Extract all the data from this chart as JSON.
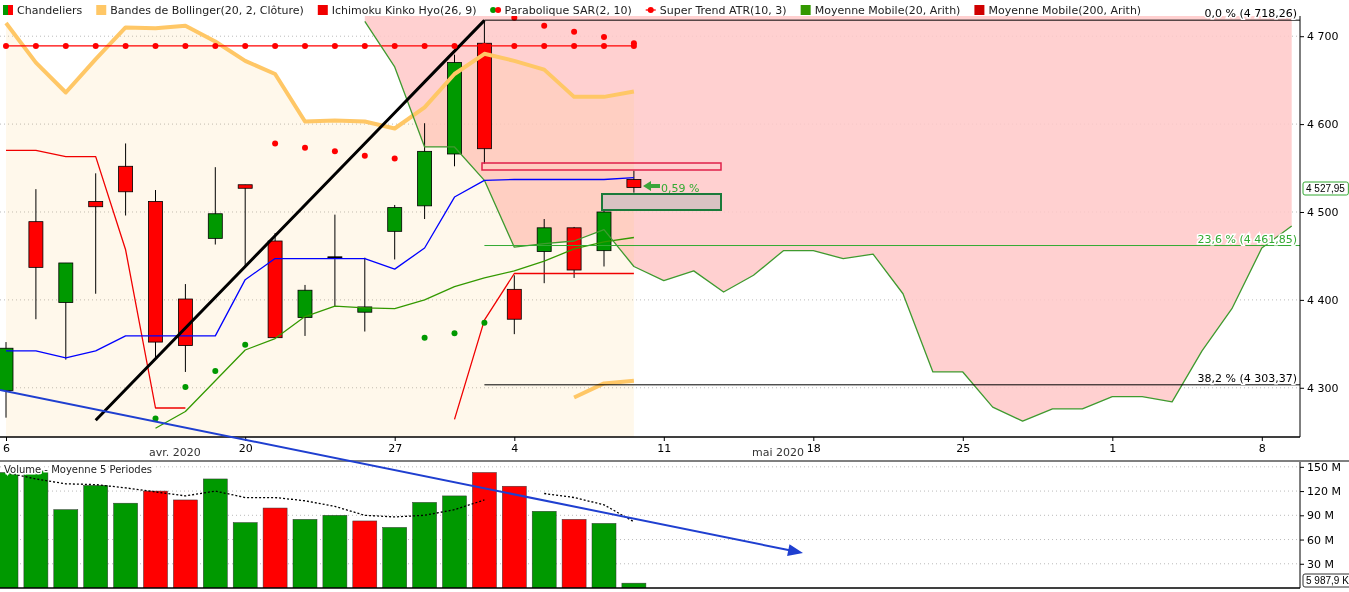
{
  "chart_data": [
    {
      "type": "candlestick",
      "legend": "top left",
      "grid": "y",
      "ylim": [
        4244,
        4723
      ],
      "yticks": [
        {
          "value": 4300,
          "label": "4 300"
        },
        {
          "value": 4400,
          "label": "4 400"
        },
        {
          "value": 4500,
          "label": "4 500"
        },
        {
          "value": 4600,
          "label": "4 600"
        },
        {
          "value": 4700,
          "label": "4 700"
        }
      ],
      "categories": [
        "6",
        null,
        null,
        null,
        null,
        null,
        null,
        null,
        "20",
        null,
        null,
        null,
        null,
        "27",
        null,
        null,
        null,
        "4",
        null,
        null,
        null,
        null,
        "11",
        null,
        null,
        null,
        null,
        "18",
        null,
        null,
        null,
        null,
        "25",
        null,
        null,
        null,
        null,
        "1",
        null,
        null,
        null,
        null,
        "8",
        null
      ],
      "series": [
        {
          "name": "Chandeliers",
          "colors": [
            "#009900",
            "#ff0000",
            "#009900",
            "#ff0000",
            "#ff0000",
            "#ff0000",
            "#ff0000",
            "#009900",
            "#ff0000",
            "#ff0000",
            "#009900",
            "#000000",
            "#009900",
            "#009900",
            "#009900",
            "#009900",
            "#ff0000",
            "#ff0000",
            "#009900",
            "#ff0000",
            "#009900",
            "#ff0000",
            null,
            null,
            null,
            null,
            null,
            null,
            null,
            null,
            null,
            null,
            null,
            null,
            null,
            null,
            null,
            null,
            null,
            null,
            null,
            null,
            null,
            null
          ],
          "ohlc": [
            [
              4297,
              4352,
              4266,
              4345
            ],
            [
              4489,
              4526,
              4378,
              4437
            ],
            [
              4397,
              4442,
              4332,
              4442
            ],
            [
              4512,
              4544,
              4407,
              4506
            ],
            [
              4552,
              4578,
              4496,
              4523
            ],
            [
              4512,
              4525,
              4333,
              4352
            ],
            [
              4401,
              4418,
              4318,
              4348
            ],
            [
              4470,
              4551,
              4463,
              4498
            ],
            [
              4531,
              4531,
              4437,
              4527
            ],
            [
              4467,
              4476,
              4357,
              4357
            ],
            [
              4380,
              4417,
              4359,
              4411
            ],
            [
              4449,
              4497,
              4393,
              4448
            ],
            [
              4386,
              4448,
              4364,
              4392
            ],
            [
              4478,
              4508,
              4446,
              4505
            ],
            [
              4507,
              4601,
              4492,
              4569
            ],
            [
              4566,
              4679,
              4552,
              4670
            ],
            [
              4692,
              4718.26,
              4555,
              4572
            ],
            [
              4412,
              4428,
              4361,
              4378
            ],
            [
              4455,
              4492,
              4419,
              4482
            ],
            [
              4482,
              4483,
              4425,
              4434
            ],
            [
              4456,
              4501,
              4438,
              4500
            ],
            [
              4537,
              4547,
              4522,
              4527.95
            ],
            null,
            null,
            null,
            null,
            null,
            null,
            null,
            null,
            null,
            null,
            null,
            null,
            null,
            null,
            null,
            null,
            null,
            null,
            null,
            null,
            null,
            null
          ]
        },
        {
          "name": "Bandes de Bollinger(20, 2, Clôture)",
          "type": "area",
          "color": "#ffc766",
          "values": [
            4715,
            4670,
            4636,
            4674,
            4710,
            4709,
            4712,
            4694,
            4672,
            4657,
            4603,
            4604,
            4603,
            4595,
            4619,
            4657,
            4680,
            4672,
            4662,
            4631,
            4631,
            4637,
            null,
            null,
            null,
            null,
            null,
            null,
            null,
            null,
            null,
            null,
            null,
            null,
            null,
            null,
            null,
            null,
            null,
            null,
            null,
            null,
            null,
            null
          ]
        },
        {
          "type": "line",
          "color": "#ffc766",
          "values": [
            null,
            null,
            null,
            null,
            null,
            null,
            null,
            null,
            null,
            null,
            null,
            null,
            null,
            null,
            null,
            null,
            null,
            null,
            null,
            4289,
            4305,
            4308,
            null,
            null,
            null,
            null,
            null,
            null,
            null,
            null,
            null,
            null,
            null,
            null,
            null,
            null,
            null,
            null,
            null,
            null,
            null,
            null,
            null,
            null
          ]
        },
        {
          "name": "Ichimoku Kinko Hyo(26, 9)",
          "type": "line",
          "color": "#f00000",
          "values": [
            4570,
            4570,
            4563,
            4563,
            4457,
            4277,
            4277,
            null,
            null,
            null,
            null,
            null,
            null,
            null,
            null,
            4264,
            4377,
            4430,
            4430,
            4430,
            4430,
            4430,
            null,
            null,
            null,
            null,
            null,
            null,
            null,
            null,
            null,
            null,
            null,
            null,
            null,
            null,
            null,
            null,
            null,
            null,
            null,
            null,
            null,
            null
          ]
        },
        {
          "name": "Parabolique SAR(2, 10)",
          "type": "scatter",
          "colors": [
            null,
            null,
            null,
            null,
            null,
            "#009900",
            "#009900",
            "#009900",
            "#009900",
            "#ff0000",
            "#ff0000",
            "#ff0000",
            "#ff0000",
            "#ff0000",
            "#009900",
            "#009900",
            "#009900",
            "#ff0000",
            "#ff0000",
            "#ff0000",
            "#ff0000",
            "#ff0000",
            null,
            null,
            null,
            null,
            null,
            null,
            null,
            null,
            null,
            null,
            null,
            null,
            null,
            null,
            null,
            null,
            null,
            null,
            null,
            null,
            null,
            null
          ],
          "values": [
            null,
            null,
            null,
            null,
            null,
            4265,
            4301,
            4319,
            4349,
            4578,
            4573,
            4569,
            4564,
            4561,
            4357,
            4362,
            4374,
            4721,
            4712,
            4705,
            4699,
            4692,
            null,
            null,
            null,
            null,
            null,
            null,
            null,
            null,
            null,
            null,
            null,
            null,
            null,
            null,
            null,
            null,
            null,
            null,
            null,
            null,
            null,
            null
          ]
        },
        {
          "name": "Super Trend ATR(10, 3)",
          "type": "line",
          "color": "#ff0000",
          "marker": "circle",
          "values": [
            4689,
            4689,
            4689,
            4689,
            4689,
            4689,
            4689,
            4689,
            4689,
            4689,
            4689,
            4689,
            4689,
            4689,
            4689,
            4689,
            4689,
            4689,
            4689,
            4689,
            4689,
            4689,
            null,
            null,
            null,
            null,
            null,
            null,
            null,
            null,
            null,
            null,
            null,
            null,
            null,
            null,
            null,
            null,
            null,
            null,
            null,
            null,
            null,
            null
          ]
        },
        {
          "name": "Moyenne Mobile(20, Arith)",
          "type": "line",
          "color": "#339900",
          "values": [
            null,
            null,
            null,
            null,
            null,
            4254,
            4273,
            4308,
            4343,
            4356,
            4381,
            4393,
            4391,
            4390,
            4400,
            4415,
            4425,
            4433,
            4444,
            4458,
            4466,
            4471,
            null,
            null,
            null,
            null,
            null,
            null,
            null,
            null,
            null,
            null,
            null,
            null,
            null,
            null,
            null,
            null,
            null,
            null,
            null,
            null,
            null,
            null
          ]
        },
        {
          "name": "Moyenne Mobile(200, Arith)",
          "type": "line",
          "color": "#d00000",
          "values": [
            null,
            null,
            null,
            null,
            null,
            null,
            null,
            null,
            null,
            null,
            null,
            null,
            null,
            null,
            null,
            null,
            null,
            null,
            null,
            null,
            null,
            null,
            null,
            null,
            null,
            null,
            null,
            null,
            null,
            null,
            null,
            null,
            null,
            null,
            null,
            null,
            null,
            null,
            null,
            null,
            null,
            null,
            null,
            null
          ]
        },
        {
          "type": "line",
          "color": "#3f9a2f",
          "values": [
            null,
            null,
            null,
            null,
            null,
            null,
            null,
            null,
            null,
            null,
            null,
            null,
            4717,
            4665,
            4574,
            4574,
            4536,
            4460,
            4464,
            4467,
            4480,
            4438,
            4422,
            4433,
            4409,
            4428,
            4456,
            4456,
            4447,
            4452,
            4407,
            4318,
            4318,
            4278,
            4262,
            4276,
            4276,
            4290,
            4290,
            4284,
            4342,
            4390,
            4459,
            4484
          ],
          "lower": [
            null,
            null,
            null,
            null,
            null,
            null,
            null,
            null,
            null,
            null,
            null,
            null,
            4717,
            4665,
            4574,
            4574,
            4536,
            4460,
            4464,
            4467,
            4480,
            4438,
            4422,
            4433,
            4409,
            4428,
            4456,
            4456,
            4447,
            4452,
            4407,
            4318,
            4318,
            4278,
            4262,
            4276,
            4276,
            4290,
            4290,
            4284,
            4342,
            4390,
            4459,
            4484
          ],
          "upper": [
            null,
            null,
            null,
            null,
            null,
            null,
            null,
            null,
            null,
            null,
            null,
            null,
            4723,
            4723,
            4723,
            4723,
            4723,
            4723,
            4723,
            4723,
            4723,
            4723,
            4723,
            4723,
            4723,
            4723,
            4723,
            4723,
            4723,
            4723,
            4723,
            4723,
            4723,
            4723,
            4723,
            4723,
            4723,
            4723,
            4723,
            4723,
            4723,
            4723,
            4723,
            4723
          ]
        },
        {
          "type": "line",
          "color": "#0000ff",
          "values": [
            4342,
            4342,
            4334,
            4342,
            4359,
            4359,
            4359,
            4359,
            4423,
            4447,
            4447,
            4447,
            4447,
            4435,
            4459,
            4517,
            4536,
            4537,
            4537,
            4537,
            4537,
            4539,
            null,
            null,
            null,
            null,
            null,
            null,
            null,
            null,
            null,
            null,
            null,
            null,
            null,
            null,
            null,
            null,
            null,
            null,
            null,
            null,
            null,
            null
          ]
        },
        {
          "type": "line",
          "color": "#000000",
          "values": [
            null,
            null,
            null,
            4263,
            4298,
            4333,
            4368,
            4403,
            4438,
            4473,
            4508,
            4543,
            4578,
            4613,
            4648,
            4683,
            4718,
            null,
            null,
            null,
            null,
            null,
            null,
            null,
            null,
            null,
            null,
            null,
            null,
            null,
            null,
            null,
            null,
            null,
            null,
            null,
            null,
            null,
            null,
            null,
            null,
            null,
            null,
            null
          ]
        }
      ],
      "ref_lines": [
        {
          "axis": "y",
          "value": 4718.26,
          "label": "0,0 % (4 718,26)",
          "color": "#000000"
        },
        {
          "axis": "y",
          "value": 4461.85,
          "label": "23,6 % (4 461,85)",
          "color": "#33aa33"
        },
        {
          "axis": "y",
          "value": 4303.37,
          "label": "38,2 % (4 303,37)",
          "color": "#000000"
        }
      ],
      "annotations": [
        "avr. 2020",
        "mai 2020",
        "0,59 %",
        "4 527,95"
      ]
    },
    {
      "type": "bar",
      "title": "Volume  - Moyenne 5 Periodes",
      "grid": "y",
      "tick_labels": "y",
      "ylim": [
        0,
        156
      ],
      "yticks": [
        {
          "value": 30,
          "label": "30 M"
        },
        {
          "value": 60,
          "label": "60 M"
        },
        {
          "value": 90,
          "label": "90 M"
        },
        {
          "value": 120,
          "label": "120 M"
        },
        {
          "value": 150,
          "label": "150 M"
        }
      ],
      "categories": [
        "6",
        null,
        null,
        null,
        null,
        null,
        null,
        null,
        "20",
        null,
        null,
        null,
        null,
        "27",
        null,
        null,
        null,
        "4",
        null,
        null,
        null,
        null,
        "11",
        null,
        null,
        null,
        null,
        "18",
        null,
        null,
        null,
        null,
        "25",
        null,
        null,
        null,
        null,
        "1",
        null,
        null,
        null,
        null,
        "8",
        null
      ],
      "series": [
        {
          "colors": [
            "#009900",
            "#009900",
            "#009900",
            "#009900",
            "#009900",
            "#ff0000",
            "#ff0000",
            "#009900",
            "#009900",
            "#ff0000",
            "#009900",
            "#009900",
            "#ff0000",
            "#009900",
            "#009900",
            "#009900",
            "#ff0000",
            "#ff0000",
            "#009900",
            "#ff0000",
            "#009900",
            "#009900",
            null,
            null,
            null,
            null,
            null,
            null,
            null,
            null,
            null,
            null,
            null,
            null,
            null,
            null,
            null,
            null,
            null,
            null,
            null,
            null,
            null,
            null
          ],
          "values": [
            143,
            145,
            97,
            127,
            105,
            120,
            109,
            135,
            81,
            99,
            85,
            90,
            83,
            75,
            106,
            114,
            143,
            126,
            95,
            85,
            80,
            5.9879,
            null,
            null,
            null,
            null,
            null,
            null,
            null,
            null,
            null,
            null,
            null,
            null,
            null,
            null,
            null,
            null,
            null,
            null,
            null,
            null,
            null,
            null
          ]
        },
        {
          "type": "line",
          "color": "#000000",
          "line_style": "dotted",
          "values": [
            143,
            135,
            129,
            128,
            124,
            119,
            114,
            120,
            112,
            112,
            108,
            101,
            90,
            88,
            90,
            97,
            109,
            null,
            117,
            112,
            103,
            82,
            null,
            null,
            null,
            null,
            null,
            null,
            null,
            null,
            null,
            null,
            null,
            null,
            null,
            null,
            null,
            null,
            null,
            null,
            null,
            null,
            null,
            null
          ]
        }
      ],
      "annotations": [
        "5 987,9 K"
      ]
    }
  ]
}
